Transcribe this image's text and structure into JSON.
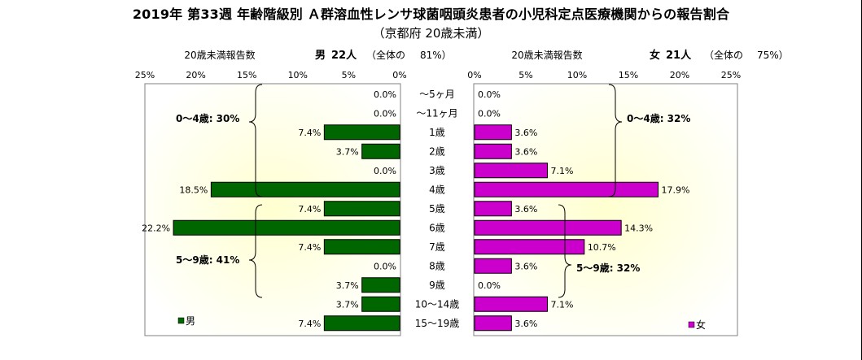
{
  "title": "2019年 第33週 年齢階級別 Ａ群溶血性レンサ球菌咽頭炎患者の小児科定点医療機関からの報告割合",
  "subtitle": "（京都府 20歳未満）",
  "male_header": {
    "reports_label": "20歳未満報告数",
    "sex": "男",
    "count": "22人",
    "share_prefix": "（全体の",
    "share_value": "81%）"
  },
  "female_header": {
    "reports_label": "20歳未満報告数",
    "sex": "女",
    "count": "21人",
    "share_prefix": "（全体の",
    "share_value": "75%）"
  },
  "colors": {
    "male": "#006600",
    "female": "#cc00cc",
    "plot_bg_center": "#ffffd0",
    "plot_bg_edge": "#ffffff"
  },
  "chart_data": {
    "type": "bar",
    "orientation": "horizontal-butterfly",
    "categories": [
      "～5ヶ月",
      "～11ヶ月",
      "1歳",
      "2歳",
      "3歳",
      "4歳",
      "5歳",
      "6歳",
      "7歳",
      "8歳",
      "9歳",
      "10～14歳",
      "15～19歳"
    ],
    "xlim": [
      0,
      25
    ],
    "x_ticks": [
      "0%",
      "5%",
      "10%",
      "15%",
      "20%",
      "25%"
    ],
    "series": [
      {
        "name": "男",
        "side": "left",
        "values": [
          0.0,
          0.0,
          7.4,
          3.7,
          0.0,
          18.5,
          7.4,
          22.2,
          7.4,
          0.0,
          3.7,
          3.7,
          7.4
        ],
        "labels": [
          "0.0%",
          "0.0%",
          "7.4%",
          "3.7%",
          "0.0%",
          "18.5%",
          "7.4%",
          "22.2%",
          "7.4%",
          "0.0%",
          "3.7%",
          "3.7%",
          "7.4%"
        ]
      },
      {
        "name": "女",
        "side": "right",
        "values": [
          0.0,
          0.0,
          3.6,
          3.6,
          7.1,
          17.9,
          3.6,
          14.3,
          10.7,
          3.6,
          0.0,
          7.1,
          3.6
        ],
        "labels": [
          "0.0%",
          "0.0%",
          "3.6%",
          "3.6%",
          "7.1%",
          "17.9%",
          "3.6%",
          "14.3%",
          "10.7%",
          "3.6%",
          "0.0%",
          "7.1%",
          "3.6%"
        ]
      }
    ],
    "annotations": {
      "male_0_4": "0～4歳: 30%",
      "male_5_9": "5～9歳: 41%",
      "female_0_4": "0～4歳: 32%",
      "female_5_9": "5～9歳: 32%"
    },
    "legend": {
      "male": "男",
      "female": "女",
      "male_placement": "bottom-left",
      "female_placement": "bottom-right"
    },
    "grid": false
  }
}
